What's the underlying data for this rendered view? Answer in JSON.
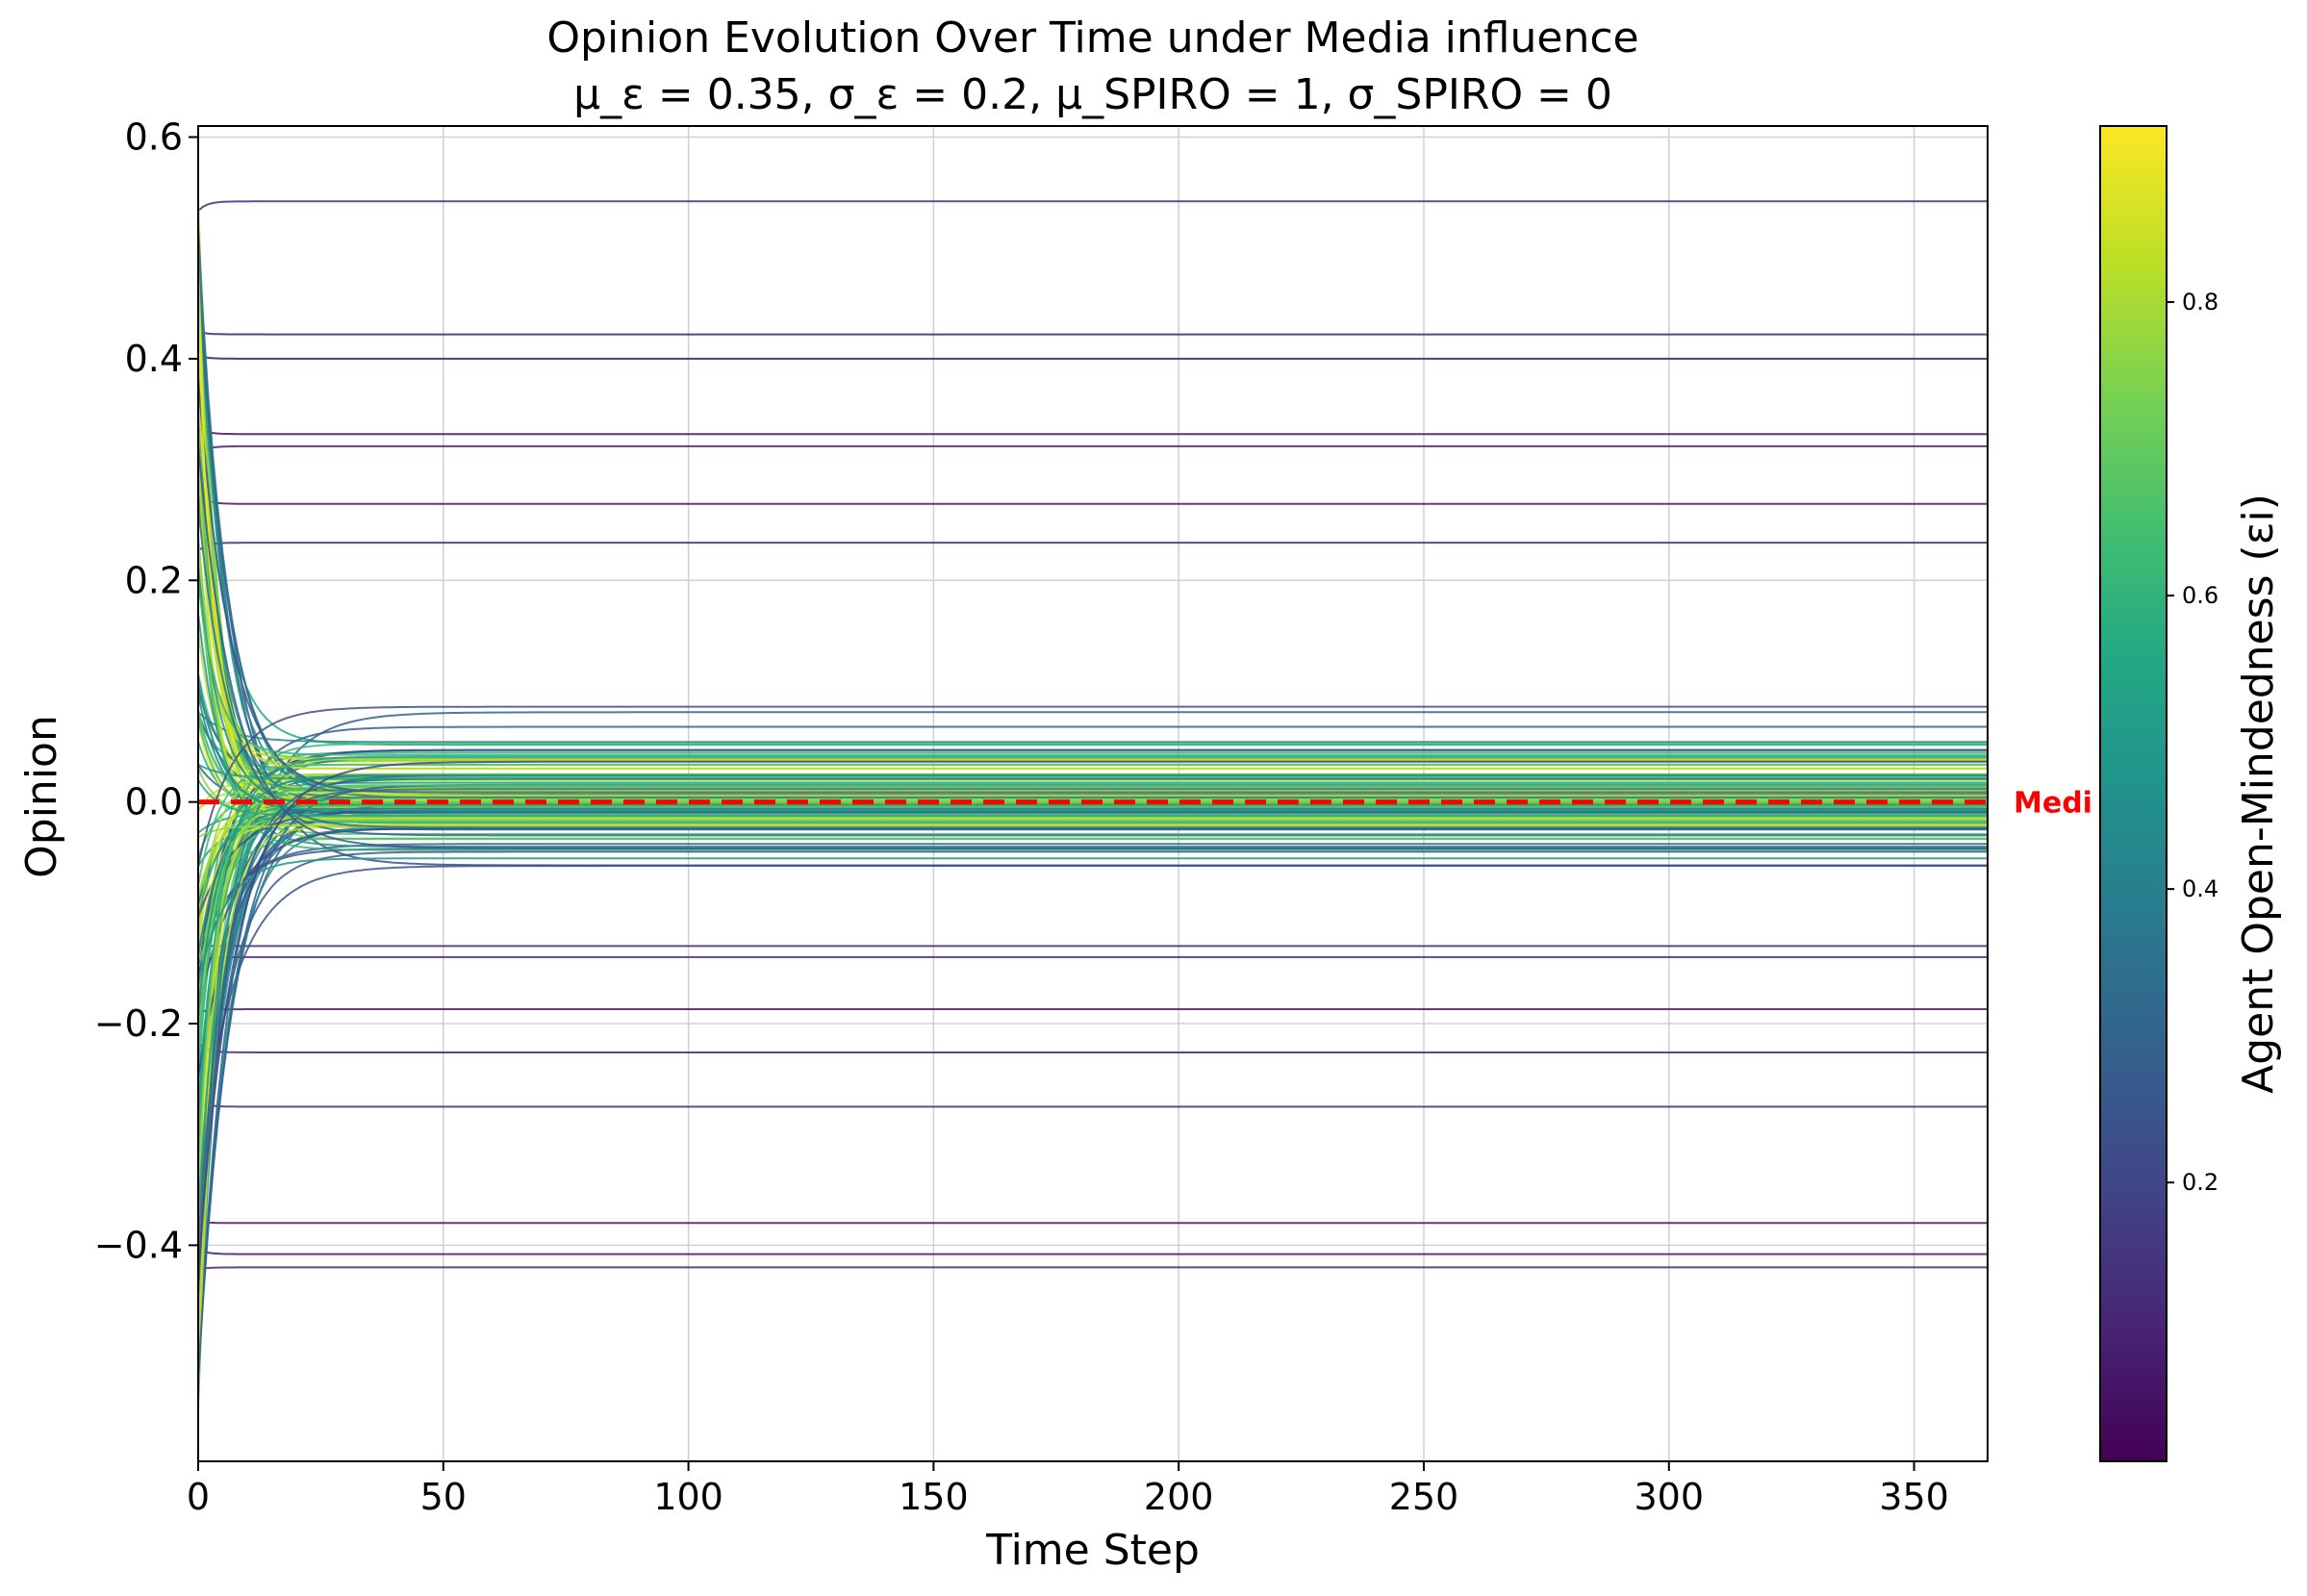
{
  "chart_data": {
    "type": "line",
    "title": "Opinion Evolution Over Time under Media influence",
    "subtitle": "μ_ε = 0.35, σ_ε = 0.2, μ_SPIRO = 1, σ_SPIRO = 0",
    "xlabel": "Time Step",
    "ylabel": "Opinion",
    "xlim": [
      0,
      365
    ],
    "ylim": [
      -0.595,
      0.61
    ],
    "xticks": [
      "0",
      "50",
      "100",
      "150",
      "200",
      "250",
      "300",
      "350"
    ],
    "yticks": [
      "−0.4",
      "−0.2",
      "0.0",
      "0.2",
      "0.4",
      "0.6"
    ],
    "grid": true,
    "media_line": {
      "y": 0.0,
      "label": "Medi",
      "color": "#ff0000",
      "style": "dashed"
    },
    "colorbar": {
      "label": "Agent Open-Mindedness (εi)",
      "range": [
        0.01,
        0.92
      ],
      "ticks": [
        "0.2",
        "0.4",
        "0.6",
        "0.8"
      ],
      "colormap": "viridis"
    },
    "series_summary": {
      "agents_count_approx": 160,
      "x_end": 365,
      "closed_minded_final_opinions": [
        0.542,
        0.422,
        0.4,
        0.332,
        0.321,
        0.269,
        0.234,
        -0.13,
        -0.14,
        -0.187,
        -0.226,
        -0.275,
        -0.38,
        -0.408,
        -0.42
      ],
      "converged_band": [
        -0.085,
        0.118
      ]
    }
  }
}
